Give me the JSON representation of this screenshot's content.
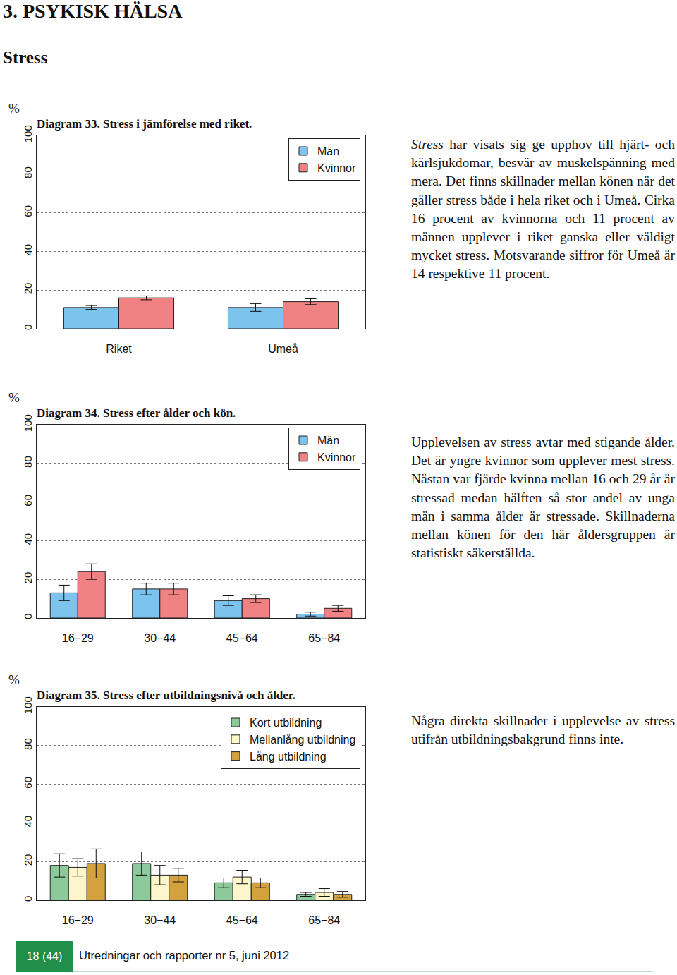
{
  "page": {
    "section": "3. PSYKISK HÄLSA",
    "heading": "Stress",
    "page_number": "18 (44)",
    "footer": "Utredningar och rapporter nr 5, juni 2012",
    "paragraphs": [
      [
        {
          "text": "Stress",
          "italic": true
        },
        {
          "text": " har visats sig ge upphov till hjärt- och kärlsjukdomar, besvär av muskelspänning med mera. Det finns skillnader mellan könen när det gäller stress både i hela riket och i Umeå. Cirka 16 procent av kvinnorna och 11 procent av männen upplever i riket ganska eller väldigt mycket stress. Motsvarande siffror för Umeå är 14 respektive 11 procent.",
          "italic": false
        }
      ],
      [
        {
          "text": "Upplevelsen av stress avtar med stigande ålder. Det är yngre kvinnor som upplever mest stress. Nästan var fjärde kvinna mellan 16 och 29 år är stressad medan hälften så stor andel av unga män i samma ålder är stressade. Skillnaderna mellan könen för den här åldersgruppen är statistiskt säkerställda.",
          "italic": false
        }
      ],
      [
        {
          "text": "Några direkta skillnader i upplevelse av stress utifrån utbildningsbakgrund finns inte.",
          "italic": false
        }
      ]
    ]
  },
  "chart_data": [
    {
      "type": "bar",
      "title": "Diagram 33. Stress i jämförelse med riket.",
      "y_label": "%",
      "categories": [
        "Riket",
        "Umeå"
      ],
      "series": [
        {
          "name": "Män",
          "color": "#7cc4ee",
          "values": [
            11,
            11
          ],
          "errors": [
            1,
            2
          ]
        },
        {
          "name": "Kvinnor",
          "color": "#f08283",
          "values": [
            16,
            14
          ],
          "errors": [
            1,
            1.5
          ]
        }
      ],
      "ylim": [
        0,
        100
      ],
      "yticks": [
        0,
        20,
        40,
        60,
        80,
        100
      ],
      "grid": true,
      "legend": "top right"
    },
    {
      "type": "bar",
      "title": "Diagram 34. Stress efter ålder och kön.",
      "y_label": "%",
      "categories": [
        "16−29",
        "30−44",
        "45−64",
        "65−84"
      ],
      "series": [
        {
          "name": "Män",
          "color": "#7cc4ee",
          "values": [
            13,
            15,
            9,
            2
          ],
          "errors": [
            4,
            3,
            2.5,
            1
          ]
        },
        {
          "name": "Kvinnor",
          "color": "#f08283",
          "values": [
            24,
            15,
            10,
            5
          ],
          "errors": [
            4,
            3,
            2,
            1.5
          ]
        }
      ],
      "ylim": [
        0,
        100
      ],
      "yticks": [
        0,
        20,
        40,
        60,
        80,
        100
      ],
      "grid": true,
      "legend": "top right"
    },
    {
      "type": "bar",
      "title": "Diagram 35. Stress efter utbildningsnivå och ålder.",
      "y_label": "%",
      "categories": [
        "16−29",
        "30−44",
        "45−64",
        "65−84"
      ],
      "series": [
        {
          "name": "Kort utbildning",
          "color": "#8dca9b",
          "values": [
            18,
            19,
            9,
            3
          ],
          "errors": [
            6,
            6,
            2.5,
            1
          ]
        },
        {
          "name": "Mellanlång utbildning",
          "color": "#fdf6cb",
          "values": [
            17,
            13,
            12,
            4
          ],
          "errors": [
            4.5,
            5,
            3.5,
            2
          ]
        },
        {
          "name": "Lång utbildning",
          "color": "#d4a23c",
          "values": [
            19,
            13,
            9,
            3
          ],
          "errors": [
            7.5,
            3.5,
            2.5,
            1.5
          ]
        }
      ],
      "ylim": [
        0,
        100
      ],
      "yticks": [
        0,
        20,
        40,
        60,
        80,
        100
      ],
      "grid": true,
      "legend": "top right"
    }
  ]
}
